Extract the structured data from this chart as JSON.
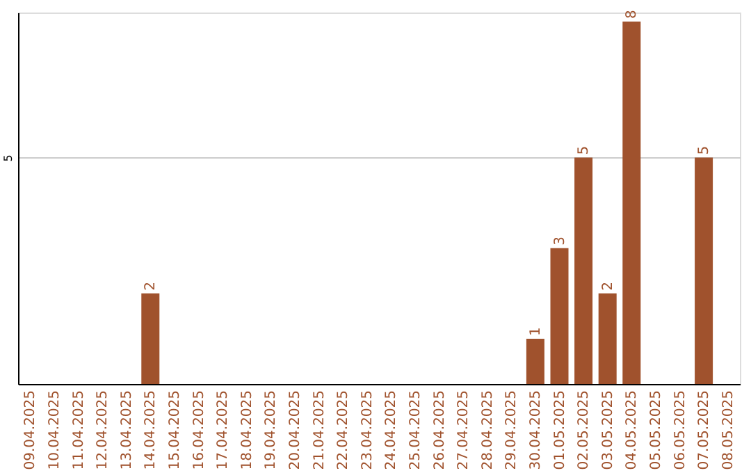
{
  "chart_data": {
    "type": "bar",
    "categories": [
      "09.04.2025",
      "10.04.2025",
      "11.04.2025",
      "12.04.2025",
      "13.04.2025",
      "14.04.2025",
      "15.04.2025",
      "16.04.2025",
      "17.04.2025",
      "18.04.2025",
      "19.04.2025",
      "20.04.2025",
      "21.04.2025",
      "22.04.2025",
      "23.04.2025",
      "24.04.2025",
      "25.04.2025",
      "26.04.2025",
      "27.04.2025",
      "28.04.2025",
      "29.04.2025",
      "30.04.2025",
      "01.05.2025",
      "02.05.2025",
      "03.05.2025",
      "04.05.2025",
      "05.05.2025",
      "06.05.2025",
      "07.05.2025",
      "08.05.2025"
    ],
    "values": [
      null,
      null,
      null,
      null,
      null,
      2,
      null,
      null,
      null,
      null,
      null,
      null,
      null,
      null,
      null,
      null,
      null,
      null,
      null,
      null,
      null,
      1,
      3,
      5,
      2,
      8,
      null,
      null,
      5,
      null
    ],
    "color": "#a0522d",
    "ylim": [
      0,
      8.2
    ],
    "yticks": [
      5
    ],
    "grid": "y",
    "data_labels": true
  }
}
